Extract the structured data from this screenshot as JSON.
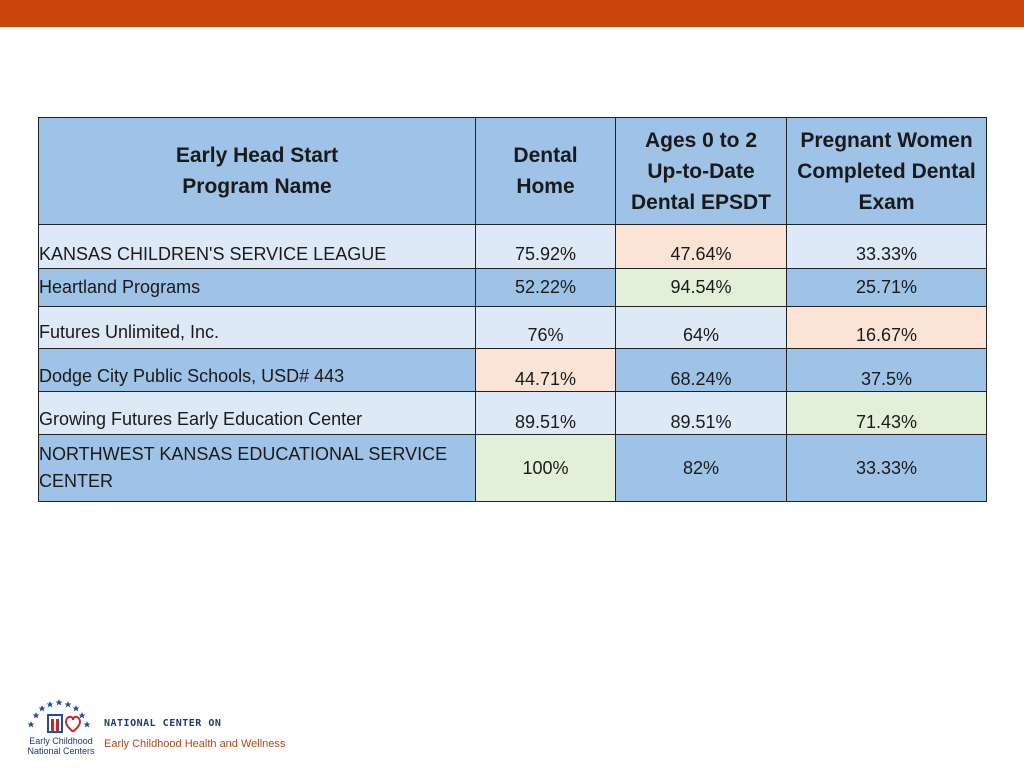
{
  "table": {
    "headers": [
      [
        "Early Head Start",
        "Program Name"
      ],
      [
        "Dental",
        "Home"
      ],
      [
        "Ages 0 to 2",
        "Up-to-Date",
        "Dental EPSDT"
      ],
      [
        "Pregnant Women",
        "Completed Dental",
        "Exam"
      ]
    ],
    "rows": [
      {
        "name": "KANSAS CHILDREN'S SERVICE LEAGUE",
        "dental_home": "75.92%",
        "ages_0_2": "47.64%",
        "pregnant_women": "33.33%"
      },
      {
        "name": "Heartland Programs",
        "dental_home": "52.22%",
        "ages_0_2": "94.54%",
        "pregnant_women": "25.71%"
      },
      {
        "name": "Futures Unlimited, Inc.",
        "dental_home": "76%",
        "ages_0_2": "64%",
        "pregnant_women": "16.67%"
      },
      {
        "name": "Dodge City Public Schools, USD# 443",
        "dental_home": "44.71%",
        "ages_0_2": "68.24%",
        "pregnant_women": "37.5%"
      },
      {
        "name": "Growing Futures Early Education Center",
        "dental_home": "89.51%",
        "ages_0_2": "89.51%",
        "pregnant_women": "71.43%"
      },
      {
        "name": "NORTHWEST KANSAS EDUCATIONAL SERVICE CENTER",
        "dental_home": "100%",
        "ages_0_2": "82%",
        "pregnant_women": "33.33%"
      }
    ]
  },
  "footer": {
    "logo_caption": [
      "Early Childhood",
      "National Centers"
    ],
    "center_label": "NATIONAL CENTER ON",
    "center_name": "Early Childhood Health and Wellness"
  },
  "colors": {
    "top_bar": "#c9450c",
    "header_blue": "#9ec3e6",
    "row_light": "#dde9f6",
    "highlight_low": "#fbe4d5",
    "highlight_high": "#e2efd9"
  }
}
